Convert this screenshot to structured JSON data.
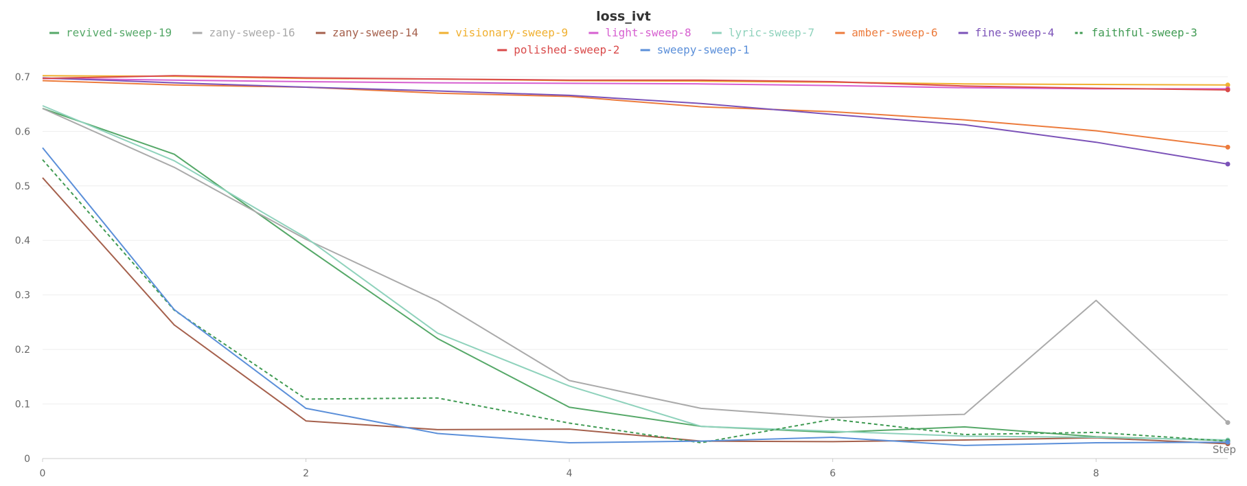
{
  "chart_data": {
    "type": "line",
    "title": "loss_ivt",
    "xlabel": "Step",
    "ylabel": "",
    "xlim": [
      0,
      9
    ],
    "ylim": [
      0,
      0.72
    ],
    "x_ticks": [
      0,
      2,
      4,
      6,
      8
    ],
    "y_ticks": [
      0,
      0.1,
      0.2,
      0.3,
      0.4,
      0.5,
      0.6,
      0.7
    ],
    "grid": true,
    "legend_position": "top",
    "x": [
      0,
      1,
      2,
      3,
      4,
      5,
      6,
      7,
      8,
      9
    ],
    "series": [
      {
        "name": "revived-sweep-19",
        "color": "#55a868",
        "dash": false,
        "values": [
          0.642,
          0.558,
          0.387,
          0.22,
          0.094,
          0.059,
          0.048,
          0.058,
          0.04,
          0.033
        ]
      },
      {
        "name": "zany-sweep-16",
        "color": "#aaaaaa",
        "dash": false,
        "values": [
          0.642,
          0.534,
          0.402,
          0.289,
          0.143,
          0.092,
          0.075,
          0.081,
          0.29,
          0.066
        ]
      },
      {
        "name": "zany-sweep-14",
        "color": "#a5604c",
        "dash": false,
        "values": [
          0.515,
          0.245,
          0.069,
          0.053,
          0.054,
          0.032,
          0.031,
          0.034,
          0.038,
          0.027
        ]
      },
      {
        "name": "visionary-sweep-9",
        "color": "#f0b030",
        "dash": false,
        "values": [
          0.702,
          0.701,
          0.697,
          0.696,
          0.693,
          0.692,
          0.69,
          0.687,
          0.686,
          0.685
        ]
      },
      {
        "name": "light-sweep-8",
        "color": "#d65fd0",
        "dash": false,
        "values": [
          0.697,
          0.694,
          0.691,
          0.689,
          0.688,
          0.687,
          0.684,
          0.68,
          0.678,
          0.678
        ]
      },
      {
        "name": "lyric-sweep-7",
        "color": "#8fd2bc",
        "dash": false,
        "values": [
          0.647,
          0.546,
          0.405,
          0.23,
          0.133,
          0.059,
          0.05,
          0.041,
          0.039,
          0.034
        ]
      },
      {
        "name": "amber-sweep-6",
        "color": "#ec7b3c",
        "dash": false,
        "values": [
          0.693,
          0.685,
          0.681,
          0.67,
          0.664,
          0.645,
          0.636,
          0.621,
          0.601,
          0.571
        ]
      },
      {
        "name": "fine-sweep-4",
        "color": "#7b52b8",
        "dash": false,
        "values": [
          0.698,
          0.689,
          0.681,
          0.674,
          0.666,
          0.651,
          0.631,
          0.612,
          0.58,
          0.54
        ]
      },
      {
        "name": "faithful-sweep-3",
        "color": "#3f9a52",
        "dash": true,
        "values": [
          0.548,
          0.272,
          0.109,
          0.111,
          0.065,
          0.029,
          0.072,
          0.044,
          0.048,
          0.032
        ]
      },
      {
        "name": "polished-sweep-2",
        "color": "#d94a4a",
        "dash": false,
        "values": [
          0.697,
          0.702,
          0.698,
          0.696,
          0.694,
          0.694,
          0.691,
          0.683,
          0.679,
          0.676
        ]
      },
      {
        "name": "sweepy-sweep-1",
        "color": "#5b8fd9",
        "dash": false,
        "values": [
          0.57,
          0.273,
          0.092,
          0.046,
          0.029,
          0.032,
          0.039,
          0.024,
          0.029,
          0.03
        ]
      }
    ]
  }
}
